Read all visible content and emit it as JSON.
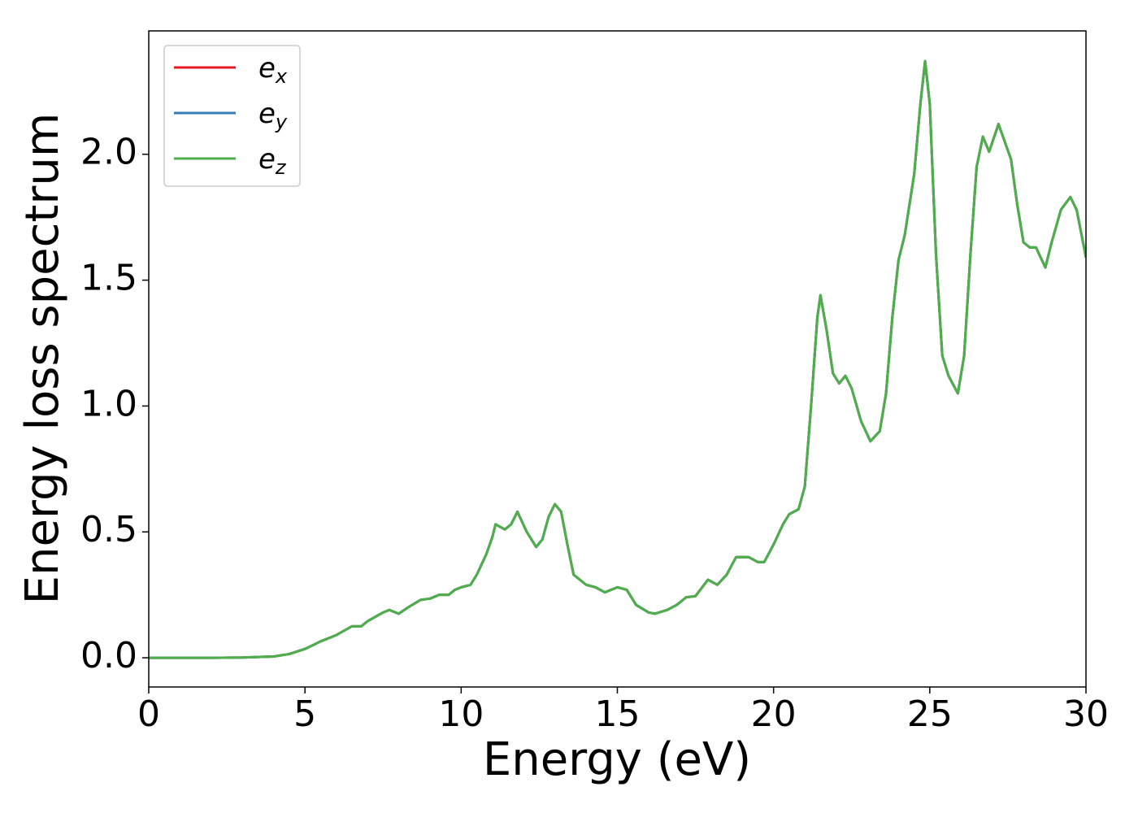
{
  "chart_data": {
    "type": "line",
    "xlabel": "Energy (eV)",
    "ylabel": "Energy loss spectrum",
    "xlim": [
      0,
      30
    ],
    "ylim": [
      -0.116,
      2.49
    ],
    "xticks": [
      0,
      5,
      10,
      15,
      20,
      25,
      30
    ],
    "yticks": [
      {
        "value": 0,
        "label": "0.0"
      },
      0.5,
      {
        "value": 1,
        "label": "1.0"
      },
      1.5,
      {
        "value": 2,
        "label": "2.0"
      }
    ],
    "legend": "upper left",
    "grid": false,
    "x": [
      0,
      1,
      2,
      3,
      4,
      4.5,
      5,
      5.5,
      6,
      6.5,
      6.8,
      7,
      7.5,
      7.7,
      8,
      8.3,
      8.7,
      9,
      9.3,
      9.6,
      9.8,
      10,
      10.3,
      10.5,
      10.8,
      11,
      11.1,
      11.4,
      11.6,
      11.8,
      12.1,
      12.4,
      12.6,
      12.8,
      13,
      13.2,
      13.4,
      13.6,
      14,
      14.3,
      14.6,
      15,
      15.3,
      15.6,
      16,
      16.2,
      16.6,
      16.9,
      17.2,
      17.5,
      17.9,
      18.2,
      18.5,
      18.8,
      19.2,
      19.5,
      19.7,
      20,
      20.3,
      20.5,
      20.8,
      21,
      21.2,
      21.4,
      21.5,
      21.7,
      21.9,
      22.1,
      22.3,
      22.5,
      22.8,
      23.1,
      23.4,
      23.6,
      23.8,
      24,
      24.2,
      24.5,
      24.7,
      24.85,
      25,
      25.2,
      25.4,
      25.6,
      25.9,
      26.1,
      26.3,
      26.5,
      26.7,
      26.9,
      27.2,
      27.4,
      27.6,
      27.8,
      28,
      28.2,
      28.4,
      28.7,
      28.9,
      29.2,
      29.5,
      29.7,
      30
    ],
    "series": [
      {
        "name": "e_x",
        "color": "#e41a1c",
        "values": [
          0,
          0,
          0,
          0.001,
          0.005,
          0.015,
          0.035,
          0.065,
          0.09,
          0.125,
          0.125,
          0.145,
          0.18,
          0.19,
          0.175,
          0.2,
          0.23,
          0.235,
          0.25,
          0.25,
          0.27,
          0.28,
          0.29,
          0.33,
          0.41,
          0.48,
          0.53,
          0.51,
          0.53,
          0.58,
          0.5,
          0.44,
          0.47,
          0.56,
          0.61,
          0.58,
          0.45,
          0.33,
          0.29,
          0.28,
          0.26,
          0.28,
          0.27,
          0.21,
          0.18,
          0.175,
          0.19,
          0.21,
          0.24,
          0.245,
          0.31,
          0.29,
          0.33,
          0.4,
          0.4,
          0.38,
          0.38,
          0.45,
          0.53,
          0.57,
          0.59,
          0.68,
          1.0,
          1.35,
          1.44,
          1.3,
          1.13,
          1.09,
          1.12,
          1.07,
          0.94,
          0.86,
          0.9,
          1.05,
          1.35,
          1.58,
          1.68,
          1.92,
          2.2,
          2.37,
          2.2,
          1.6,
          1.2,
          1.12,
          1.05,
          1.2,
          1.6,
          1.95,
          2.07,
          2.01,
          2.12,
          2.05,
          1.98,
          1.8,
          1.65,
          1.63,
          1.63,
          1.55,
          1.65,
          1.78,
          1.83,
          1.78,
          1.59
        ]
      },
      {
        "name": "e_y",
        "color": "#377eb8",
        "values": [
          0,
          0,
          0,
          0.001,
          0.005,
          0.015,
          0.035,
          0.065,
          0.09,
          0.125,
          0.125,
          0.145,
          0.18,
          0.19,
          0.175,
          0.2,
          0.23,
          0.235,
          0.25,
          0.25,
          0.27,
          0.28,
          0.29,
          0.33,
          0.41,
          0.48,
          0.53,
          0.51,
          0.53,
          0.58,
          0.5,
          0.44,
          0.47,
          0.56,
          0.61,
          0.58,
          0.45,
          0.33,
          0.29,
          0.28,
          0.26,
          0.28,
          0.27,
          0.21,
          0.18,
          0.175,
          0.19,
          0.21,
          0.24,
          0.245,
          0.31,
          0.29,
          0.33,
          0.4,
          0.4,
          0.38,
          0.38,
          0.45,
          0.53,
          0.57,
          0.59,
          0.68,
          1.0,
          1.35,
          1.44,
          1.3,
          1.13,
          1.09,
          1.12,
          1.07,
          0.94,
          0.86,
          0.9,
          1.05,
          1.35,
          1.58,
          1.68,
          1.92,
          2.2,
          2.37,
          2.2,
          1.6,
          1.2,
          1.12,
          1.05,
          1.2,
          1.6,
          1.95,
          2.07,
          2.01,
          2.12,
          2.05,
          1.98,
          1.8,
          1.65,
          1.63,
          1.63,
          1.55,
          1.65,
          1.78,
          1.83,
          1.78,
          1.59
        ]
      },
      {
        "name": "e_z",
        "color": "#4daf4a",
        "values": [
          0,
          0,
          0,
          0.001,
          0.005,
          0.015,
          0.035,
          0.065,
          0.09,
          0.125,
          0.125,
          0.145,
          0.18,
          0.19,
          0.175,
          0.2,
          0.23,
          0.235,
          0.25,
          0.25,
          0.27,
          0.28,
          0.29,
          0.33,
          0.41,
          0.48,
          0.53,
          0.51,
          0.53,
          0.58,
          0.5,
          0.44,
          0.47,
          0.56,
          0.61,
          0.58,
          0.45,
          0.33,
          0.29,
          0.28,
          0.26,
          0.28,
          0.27,
          0.21,
          0.18,
          0.175,
          0.19,
          0.21,
          0.24,
          0.245,
          0.31,
          0.29,
          0.33,
          0.4,
          0.4,
          0.38,
          0.38,
          0.45,
          0.53,
          0.57,
          0.59,
          0.68,
          1.0,
          1.35,
          1.44,
          1.3,
          1.13,
          1.09,
          1.12,
          1.07,
          0.94,
          0.86,
          0.9,
          1.05,
          1.35,
          1.58,
          1.68,
          1.92,
          2.2,
          2.37,
          2.2,
          1.6,
          1.2,
          1.12,
          1.05,
          1.2,
          1.6,
          1.95,
          2.07,
          2.01,
          2.12,
          2.05,
          1.98,
          1.8,
          1.65,
          1.63,
          1.63,
          1.55,
          1.65,
          1.78,
          1.83,
          1.78,
          1.59
        ]
      }
    ]
  }
}
